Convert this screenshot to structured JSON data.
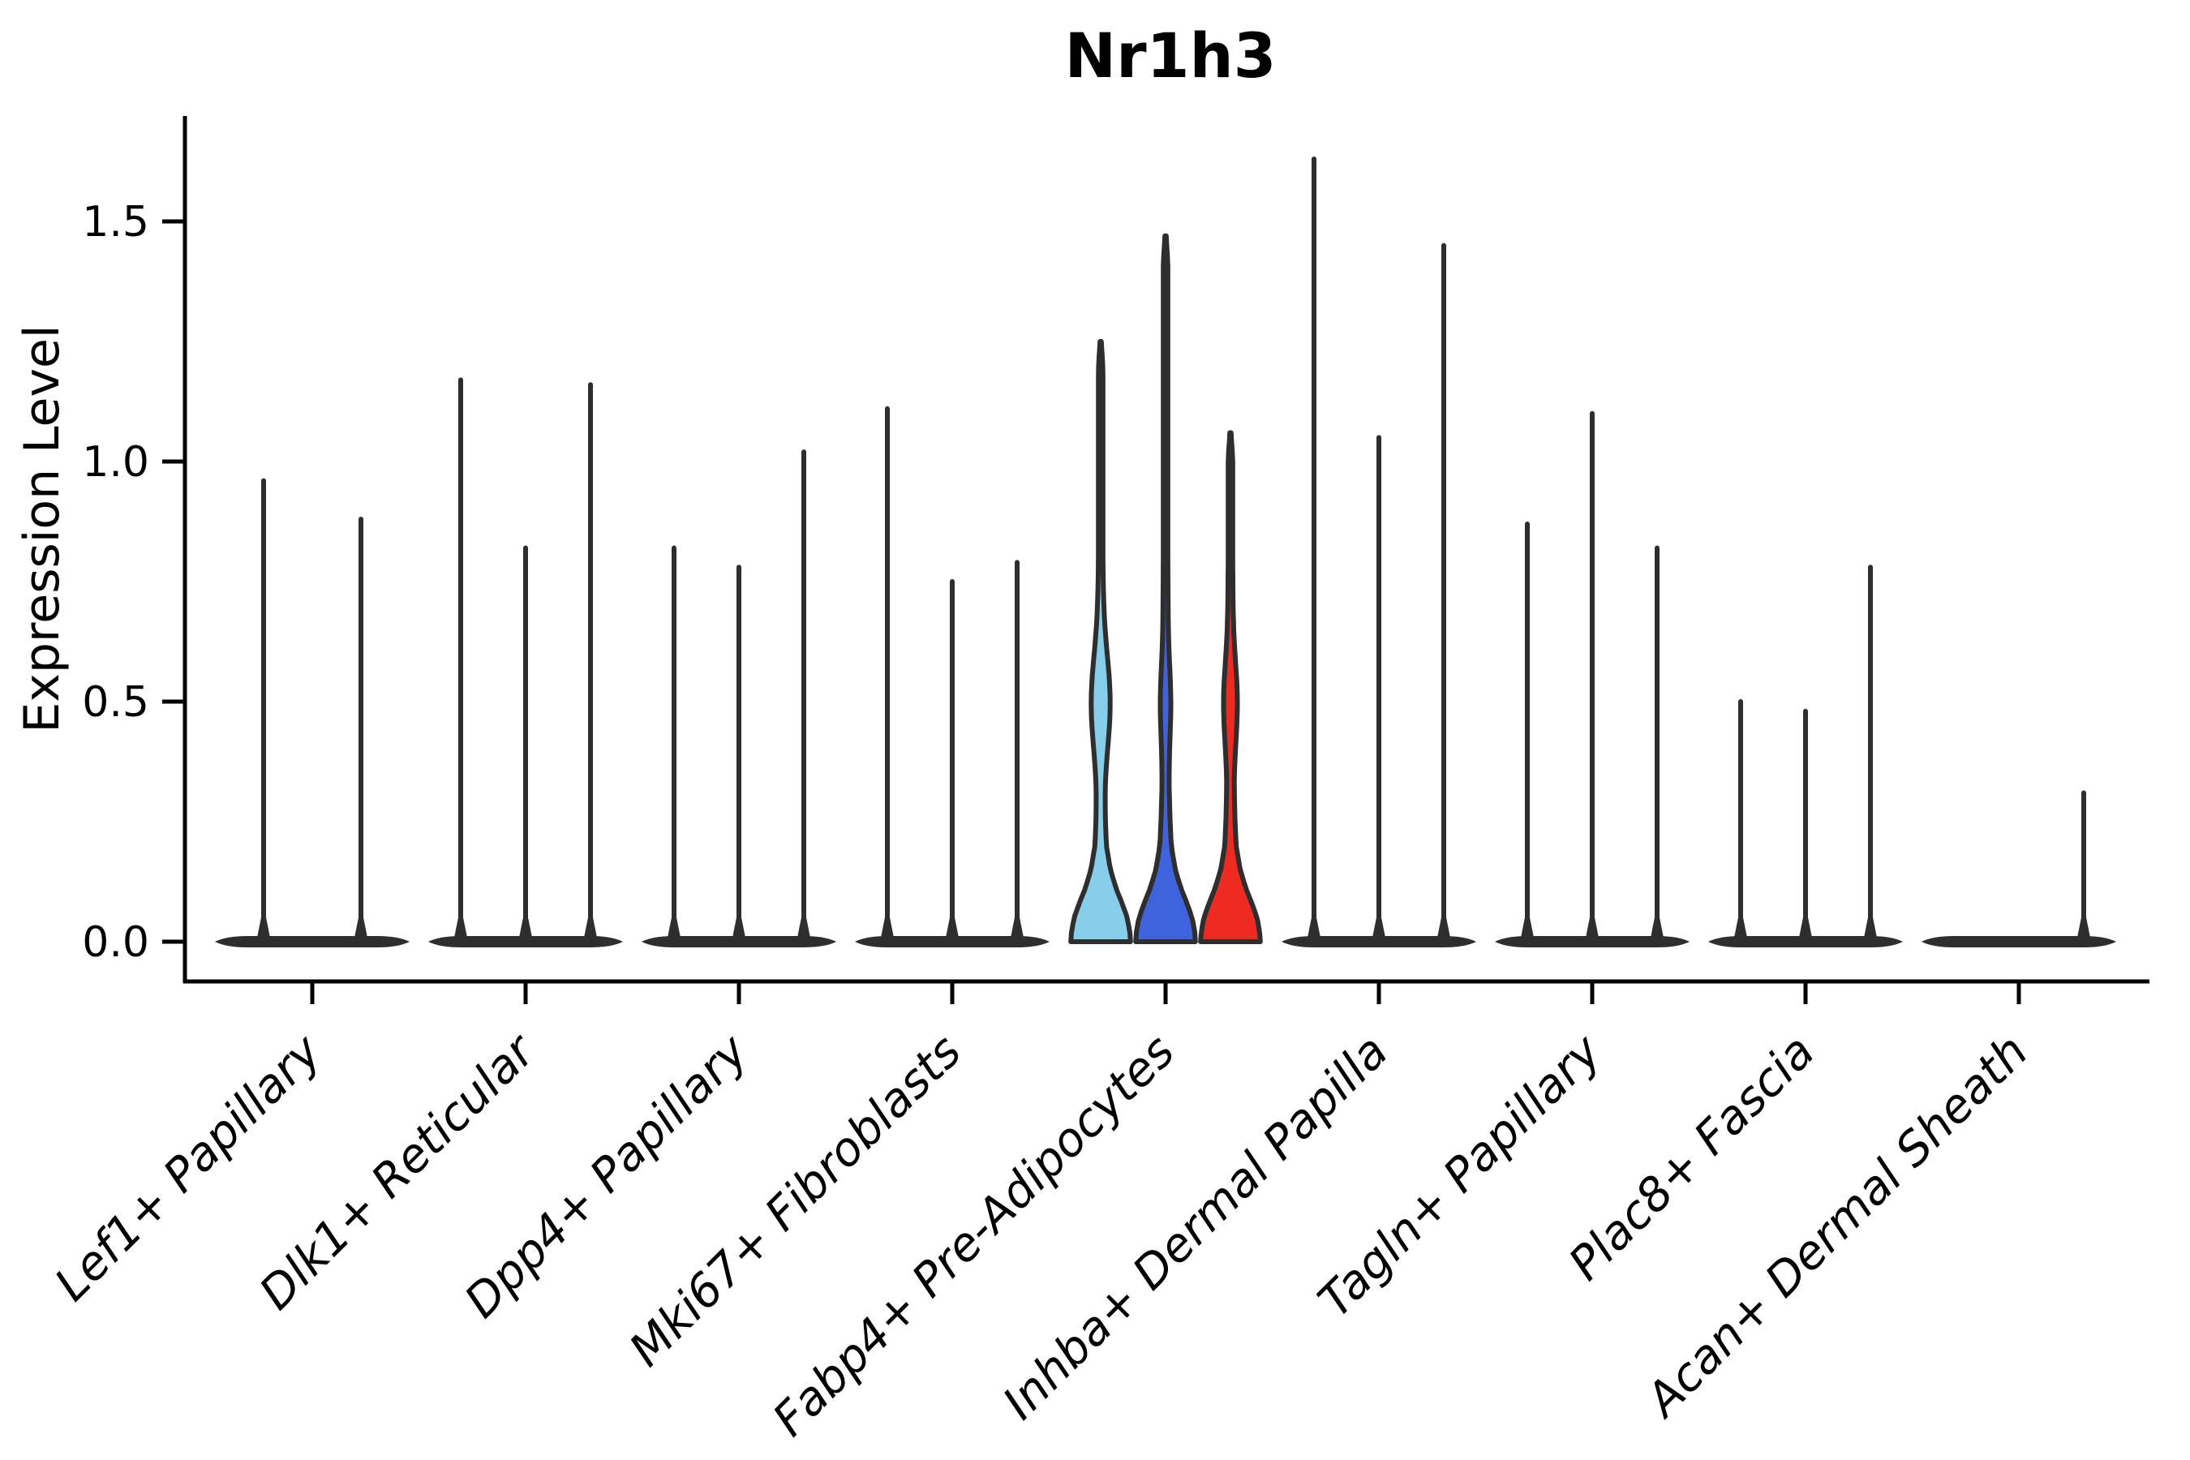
{
  "title": "Nr1h3",
  "chart_data": {
    "type": "violin",
    "title": "Nr1h3",
    "xlabel": "",
    "ylabel": "Expression Level",
    "ylim": [
      -0.08,
      1.72
    ],
    "yticks": [
      0.0,
      0.5,
      1.0,
      1.5
    ],
    "ytick_labels": [
      "0.0",
      "0.5",
      "1.0",
      "1.5"
    ],
    "grid": false,
    "legend": "none",
    "style_note": "grouped violin plot; most violins collapsed to thin spikes with flat base at 0; highlighted category has filled violins",
    "colors": {
      "spike": "#2e2e2e",
      "outline": "#2e2e2e",
      "axis": "#000000",
      "highlight_fills": [
        "#87CEEB",
        "#3F63DC",
        "#EF2B21"
      ]
    },
    "categories": [
      "Lef1+ Papillary",
      "Dlk1+ Reticular",
      "Dpp4+ Papillary",
      "Mki67+ Fibroblasts",
      "Fabp4+ Pre-Adipocytes",
      "Inhba+ Dermal Papilla",
      "Tagln+ Papillary",
      "Plac8+ Fascia",
      "Acan+ Dermal Sheath"
    ],
    "groups": [
      {
        "category": "Lef1+ Papillary",
        "violins": [
          {
            "max": 0.96,
            "style": "collapsed",
            "fill": null
          },
          {
            "max": 0.88,
            "style": "collapsed",
            "fill": null
          }
        ]
      },
      {
        "category": "Dlk1+ Reticular",
        "violins": [
          {
            "max": 1.17,
            "style": "collapsed",
            "fill": null
          },
          {
            "max": 0.82,
            "style": "collapsed",
            "fill": null
          },
          {
            "max": 1.16,
            "style": "collapsed",
            "fill": null
          }
        ]
      },
      {
        "category": "Dpp4+ Papillary",
        "violins": [
          {
            "max": 0.82,
            "style": "collapsed",
            "fill": null
          },
          {
            "max": 0.78,
            "style": "collapsed",
            "fill": null
          },
          {
            "max": 1.02,
            "style": "collapsed",
            "fill": null
          }
        ]
      },
      {
        "category": "Mki67+ Fibroblasts",
        "violins": [
          {
            "max": 1.11,
            "style": "collapsed",
            "fill": null
          },
          {
            "max": 0.75,
            "style": "collapsed",
            "fill": null
          },
          {
            "max": 0.79,
            "style": "collapsed",
            "fill": null
          }
        ]
      },
      {
        "category": "Fabp4+ Pre-Adipocytes",
        "violins": [
          {
            "max": 1.25,
            "style": "violin",
            "fill": "#87CEEB",
            "bulge": 0.2,
            "sigma": 0.095
          },
          {
            "max": 1.47,
            "style": "violin",
            "fill": "#3F63DC",
            "bulge": 0.07,
            "sigma": 0.07
          },
          {
            "max": 1.06,
            "style": "violin",
            "fill": "#EF2B21",
            "bulge": 0.12,
            "sigma": 0.08
          }
        ]
      },
      {
        "category": "Inhba+ Dermal Papilla",
        "violins": [
          {
            "max": 1.63,
            "style": "collapsed",
            "fill": null
          },
          {
            "max": 1.05,
            "style": "collapsed",
            "fill": null
          },
          {
            "max": 1.45,
            "style": "collapsed",
            "fill": null
          }
        ]
      },
      {
        "category": "Tagln+ Papillary",
        "violins": [
          {
            "max": 0.87,
            "style": "collapsed",
            "fill": null
          },
          {
            "max": 1.1,
            "style": "collapsed",
            "fill": null
          },
          {
            "max": 0.82,
            "style": "collapsed",
            "fill": null
          }
        ]
      },
      {
        "category": "Plac8+ Fascia",
        "violins": [
          {
            "max": 0.5,
            "style": "collapsed",
            "fill": null
          },
          {
            "max": 0.48,
            "style": "collapsed",
            "fill": null
          },
          {
            "max": 0.78,
            "style": "collapsed",
            "fill": null
          }
        ]
      },
      {
        "category": "Acan+ Dermal Sheath",
        "violins": [
          {
            "max": 0.0,
            "style": "collapsed",
            "fill": null
          },
          {
            "max": 0.0,
            "style": "collapsed",
            "fill": null
          },
          {
            "max": 0.31,
            "style": "collapsed",
            "fill": null
          }
        ]
      }
    ]
  }
}
